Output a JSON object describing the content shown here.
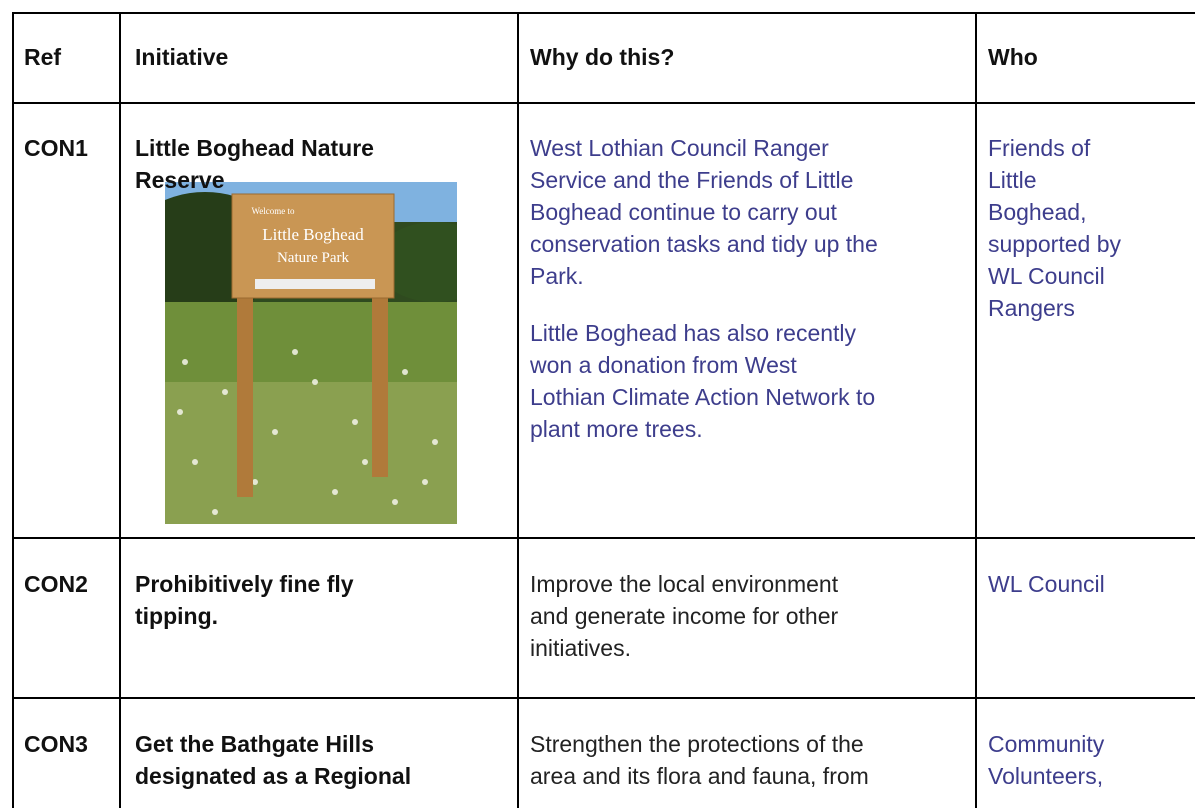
{
  "table": {
    "header": [
      "Ref",
      "Initiative",
      "Why do this?",
      "Who"
    ],
    "rows": [
      {
        "ref": "CON1",
        "initiative": [
          "Little Boghead Nature",
          "Reserve"
        ],
        "why": [
          [
            "West Lothian Council Ranger",
            "Service and the Friends of Little",
            "Boghead continue to carry out",
            "conservation tasks and tidy up the",
            "Park."
          ],
          [
            "Little Boghead has also recently",
            "won a donation from West",
            "Lothian Climate Action Network to",
            "plant more trees."
          ]
        ],
        "who": [
          "Friends of",
          "Little",
          "Boghead,",
          "supported by",
          "WL Council",
          "Rangers"
        ]
      },
      {
        "ref": "CON2",
        "initiative": [
          "Prohibitively fine fly",
          "tipping."
        ],
        "why": [
          [
            "Improve the local environment",
            "and generate income for other",
            "initiatives."
          ]
        ],
        "who": [
          "WL Council"
        ]
      },
      {
        "ref": "CON3",
        "initiative": [
          "Get the Bathgate Hills",
          "designated as a Regional"
        ],
        "why": [
          [
            "Strengthen the protections of the",
            "area and its flora and fauna, from"
          ]
        ],
        "who": [
          "Community",
          "Volunteers,"
        ]
      }
    ]
  },
  "image": {
    "sign": [
      "Welcome to",
      "Little Boghead",
      "Nature Park"
    ]
  }
}
